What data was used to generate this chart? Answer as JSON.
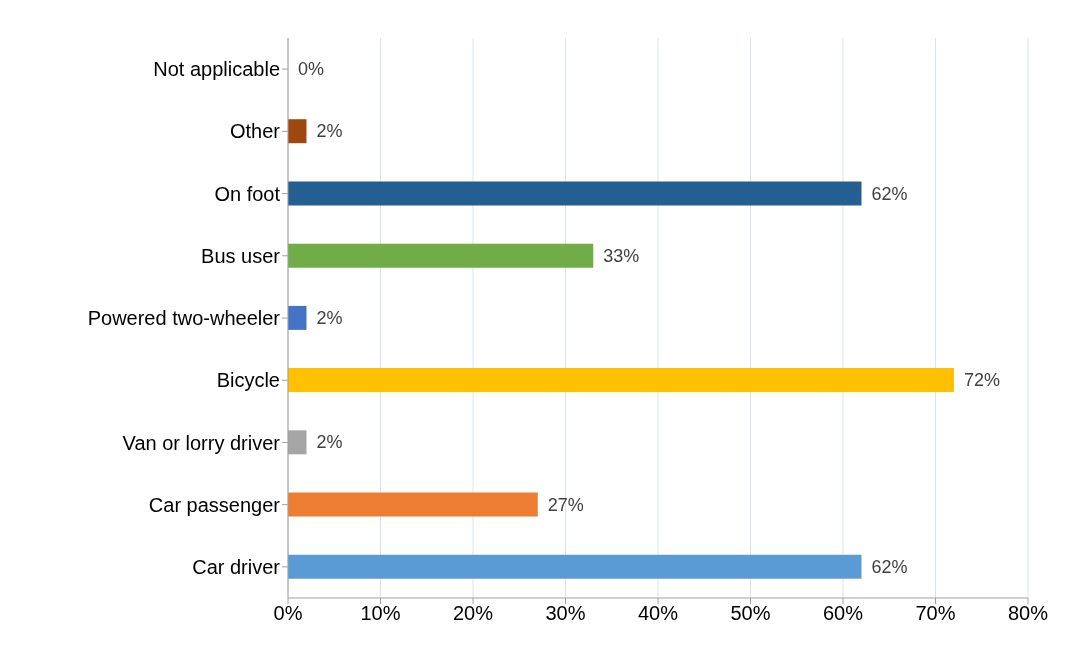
{
  "chart_data": {
    "type": "bar",
    "orientation": "horizontal",
    "categories": [
      "Not applicable",
      "Other",
      "On foot",
      "Bus user",
      "Powered two-wheeler",
      "Bicycle",
      "Van or lorry driver",
      "Car passenger",
      "Car driver"
    ],
    "values": [
      0,
      2,
      62,
      33,
      2,
      72,
      2,
      27,
      62
    ],
    "colors": [
      "#5b9bd5",
      "#9e480e",
      "#255e91",
      "#70ad47",
      "#4472c4",
      "#ffc000",
      "#a5a5a5",
      "#ed7d31",
      "#5b9bd5"
    ],
    "value_labels": [
      "0%",
      "2%",
      "62%",
      "33%",
      "2%",
      "72%",
      "2%",
      "27%",
      "62%"
    ],
    "xlim": [
      0,
      80
    ],
    "xticks": [
      {
        "value": 0,
        "label": "0%"
      },
      {
        "value": 10,
        "label": "10%"
      },
      {
        "value": 20,
        "label": "20%"
      },
      {
        "value": 30,
        "label": "30%"
      },
      {
        "value": 40,
        "label": "40%"
      },
      {
        "value": 50,
        "label": "50%"
      },
      {
        "value": 60,
        "label": "60%"
      },
      {
        "value": 70,
        "label": "70%"
      },
      {
        "value": 80,
        "label": "80%"
      }
    ],
    "grid": "x"
  }
}
